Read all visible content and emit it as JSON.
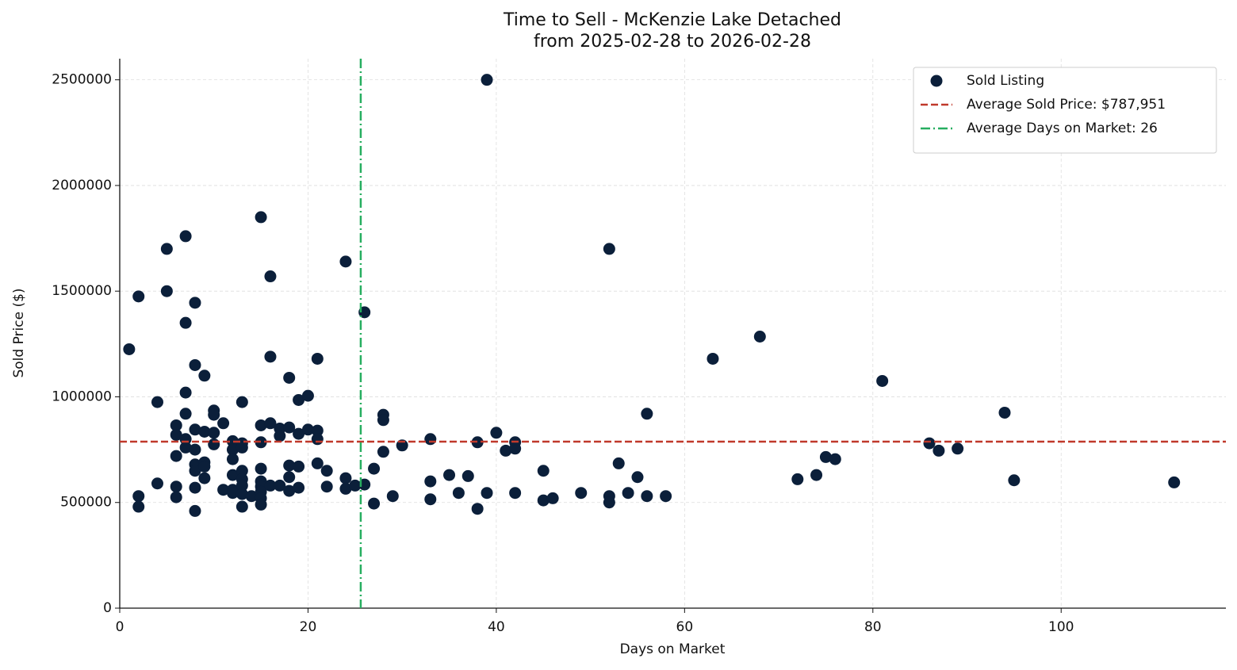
{
  "chart_data": {
    "type": "scatter",
    "title": "Time to Sell - McKenzie Lake Detached",
    "subtitle": "from 2025-02-28 to 2026-02-28",
    "xlabel": "Days on Market",
    "ylabel": "Sold Price ($)",
    "xlim": [
      0,
      117.5
    ],
    "ylim": [
      0,
      2600000
    ],
    "xticks": [
      0,
      20,
      40,
      60,
      80,
      100
    ],
    "yticks": [
      0,
      500000,
      1000000,
      1500000,
      2000000,
      2500000
    ],
    "grid": true,
    "legend": "upper right",
    "series": [
      {
        "name": "Sold Listing",
        "color": "#0b1f3a",
        "x": [
          1,
          2,
          2,
          2,
          4,
          4,
          5,
          5,
          6,
          6,
          6,
          6,
          6,
          7,
          7,
          7,
          7,
          7,
          7,
          8,
          8,
          8,
          8,
          8,
          8,
          8,
          8,
          9,
          9,
          9,
          9,
          9,
          10,
          10,
          10,
          10,
          11,
          11,
          12,
          12,
          12,
          12,
          12,
          12,
          13,
          13,
          13,
          13,
          13,
          13,
          13,
          13,
          14,
          15,
          15,
          15,
          15,
          15,
          15,
          15,
          15,
          15,
          16,
          16,
          16,
          16,
          17,
          17,
          17,
          18,
          18,
          18,
          18,
          18,
          19,
          19,
          19,
          19,
          20,
          20,
          21,
          21,
          21,
          21,
          22,
          22,
          24,
          24,
          24,
          25,
          26,
          26,
          27,
          27,
          28,
          28,
          28,
          29,
          30,
          33,
          33,
          33,
          35,
          36,
          37,
          38,
          38,
          39,
          39,
          40,
          41,
          42,
          42,
          42,
          45,
          45,
          46,
          49,
          52,
          52,
          52,
          53,
          54,
          55,
          56,
          56,
          58,
          63,
          68,
          72,
          74,
          75,
          76,
          81,
          86,
          87,
          89,
          94,
          95,
          112
        ],
        "values": [
          1225000,
          1475000,
          530000,
          480000,
          975000,
          590000,
          1700000,
          1500000,
          865000,
          820000,
          720000,
          575000,
          525000,
          1760000,
          1350000,
          1020000,
          920000,
          800000,
          760000,
          1445000,
          1150000,
          845000,
          750000,
          680000,
          650000,
          570000,
          460000,
          1100000,
          835000,
          690000,
          670000,
          615000,
          935000,
          915000,
          830000,
          775000,
          875000,
          560000,
          790000,
          750000,
          705000,
          630000,
          560000,
          545000,
          975000,
          780000,
          760000,
          650000,
          610000,
          580000,
          540000,
          480000,
          530000,
          1850000,
          865000,
          785000,
          660000,
          600000,
          575000,
          550000,
          520000,
          490000,
          1570000,
          1190000,
          875000,
          580000,
          850000,
          815000,
          580000,
          1090000,
          855000,
          675000,
          620000,
          555000,
          985000,
          825000,
          670000,
          570000,
          1005000,
          845000,
          1180000,
          840000,
          800000,
          685000,
          650000,
          575000,
          1640000,
          615000,
          565000,
          580000,
          1400000,
          585000,
          660000,
          495000,
          915000,
          890000,
          740000,
          530000,
          770000,
          800000,
          600000,
          515000,
          630000,
          545000,
          625000,
          785000,
          470000,
          2500000,
          545000,
          830000,
          745000,
          785000,
          755000,
          545000,
          650000,
          510000,
          520000,
          545000,
          1700000,
          530000,
          500000,
          685000,
          545000,
          620000,
          920000,
          530000,
          530000,
          1180000,
          1285000,
          610000,
          630000,
          715000,
          705000,
          1075000,
          780000,
          745000,
          755000,
          925000,
          605000,
          595000
        ]
      }
    ],
    "hlines": [
      {
        "name": "Average Sold Price: $787,951",
        "value": 787951,
        "color": "#c0392b"
      }
    ],
    "vlines": [
      {
        "name": "Average Days on Market: 26",
        "value": 25.6,
        "color": "#27ae60"
      }
    ]
  }
}
